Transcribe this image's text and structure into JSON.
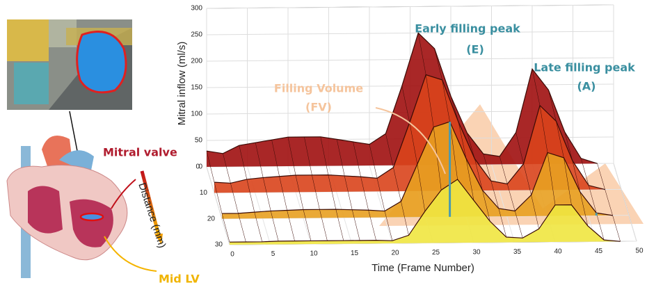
{
  "chart_data": {
    "type": "surface3d",
    "x_label": "Time (Frame Number)",
    "y_label": "Distance (mm)",
    "z_label": "Mitral inflow (ml/s)",
    "xlim": [
      0,
      50
    ],
    "xticks": [
      0,
      5,
      10,
      15,
      20,
      25,
      30,
      35,
      40,
      45,
      50
    ],
    "ylim": [
      0,
      30
    ],
    "yticks": [
      0,
      10,
      20,
      30
    ],
    "zlim": [
      0,
      300
    ],
    "zticks": [
      0,
      50,
      100,
      150,
      200,
      250,
      300
    ],
    "grid": true,
    "surface": {
      "x": [
        0,
        2,
        4,
        6,
        8,
        10,
        12,
        14,
        16,
        18,
        20,
        22,
        24,
        26,
        28,
        30,
        32,
        34,
        36,
        38,
        40,
        42,
        44,
        46,
        48
      ],
      "distances": [
        0,
        10,
        20,
        30
      ],
      "colors": [
        "#a01010",
        "#d9441c",
        "#e8a020",
        "#f0e640"
      ],
      "z": [
        [
          30,
          25,
          40,
          45,
          50,
          55,
          55,
          55,
          50,
          45,
          40,
          60,
          150,
          250,
          220,
          130,
          60,
          20,
          15,
          60,
          180,
          140,
          60,
          10,
          0
        ],
        [
          20,
          18,
          25,
          28,
          30,
          32,
          32,
          32,
          30,
          28,
          25,
          45,
          130,
          220,
          210,
          130,
          60,
          18,
          12,
          50,
          160,
          130,
          55,
          8,
          0
        ],
        [
          10,
          10,
          12,
          14,
          15,
          16,
          16,
          16,
          15,
          14,
          12,
          30,
          100,
          170,
          180,
          110,
          50,
          15,
          10,
          40,
          120,
          110,
          45,
          5,
          0
        ],
        [
          5,
          5,
          5,
          6,
          6,
          6,
          6,
          6,
          6,
          6,
          5,
          15,
          60,
          100,
          120,
          80,
          40,
          10,
          8,
          25,
          70,
          70,
          30,
          3,
          0
        ]
      ]
    },
    "marker_frames": [
      28,
      46
    ],
    "marker_color": "#4a9ab0",
    "annotations": {
      "early_peak": "Early filling peak",
      "early_peak_code": "(E)",
      "late_peak": "Late filling peak",
      "late_peak_code": "(A)",
      "filling_volume": "Filling Volume",
      "filling_volume_code": "(FV)"
    },
    "heart_labels": {
      "mitral_valve": "Mitral valve",
      "mid_lv": "Mid LV"
    }
  }
}
